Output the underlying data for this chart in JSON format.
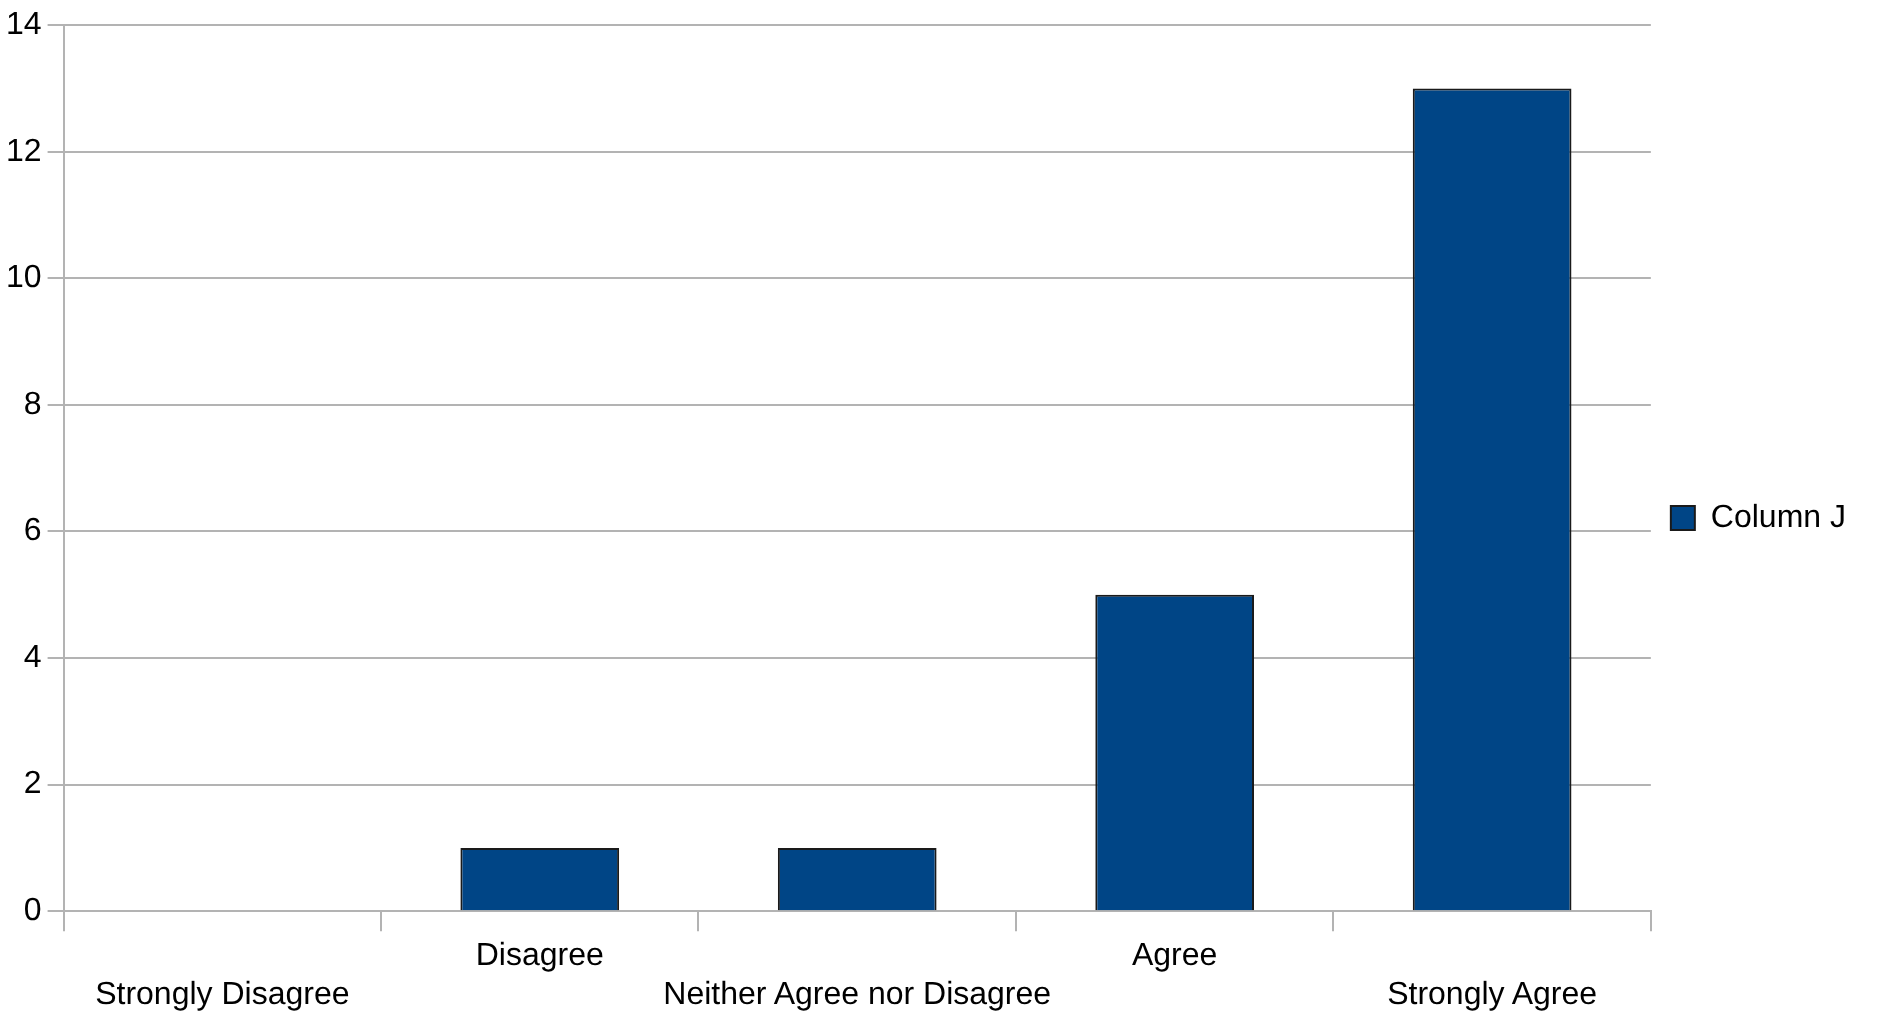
{
  "chart_data": {
    "type": "bar",
    "categories": [
      "Strongly Disagree",
      "Disagree",
      "Neither Agree nor Disagree",
      "Agree",
      "Strongly Agree"
    ],
    "series": [
      {
        "name": "Column J",
        "color": "#004586",
        "values": [
          0,
          1,
          1,
          5,
          13
        ]
      }
    ],
    "ylim": [
      0,
      14
    ],
    "yticks": [
      0,
      2,
      4,
      6,
      8,
      10,
      12,
      14
    ],
    "grid": "y",
    "legend": "right"
  }
}
